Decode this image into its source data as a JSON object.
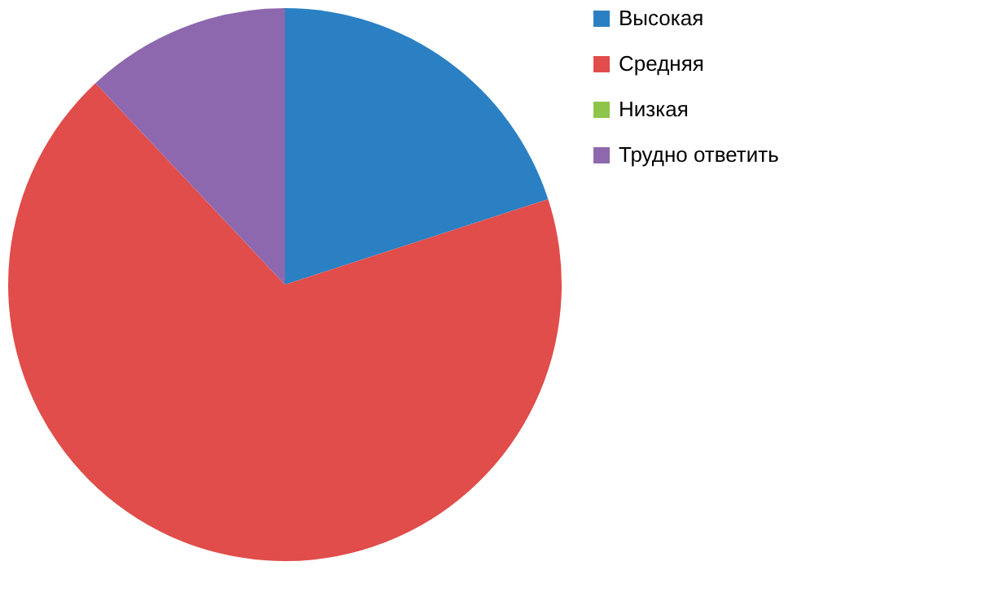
{
  "chart_data": {
    "type": "pie",
    "categories": [
      "Высокая",
      "Средняя",
      "Низкая",
      "Трудно ответить"
    ],
    "values": [
      20,
      68,
      0,
      12
    ],
    "colors": [
      "#2a80c3",
      "#e04d4a",
      "#8dc44a",
      "#8e68ae"
    ],
    "legend": "right"
  }
}
